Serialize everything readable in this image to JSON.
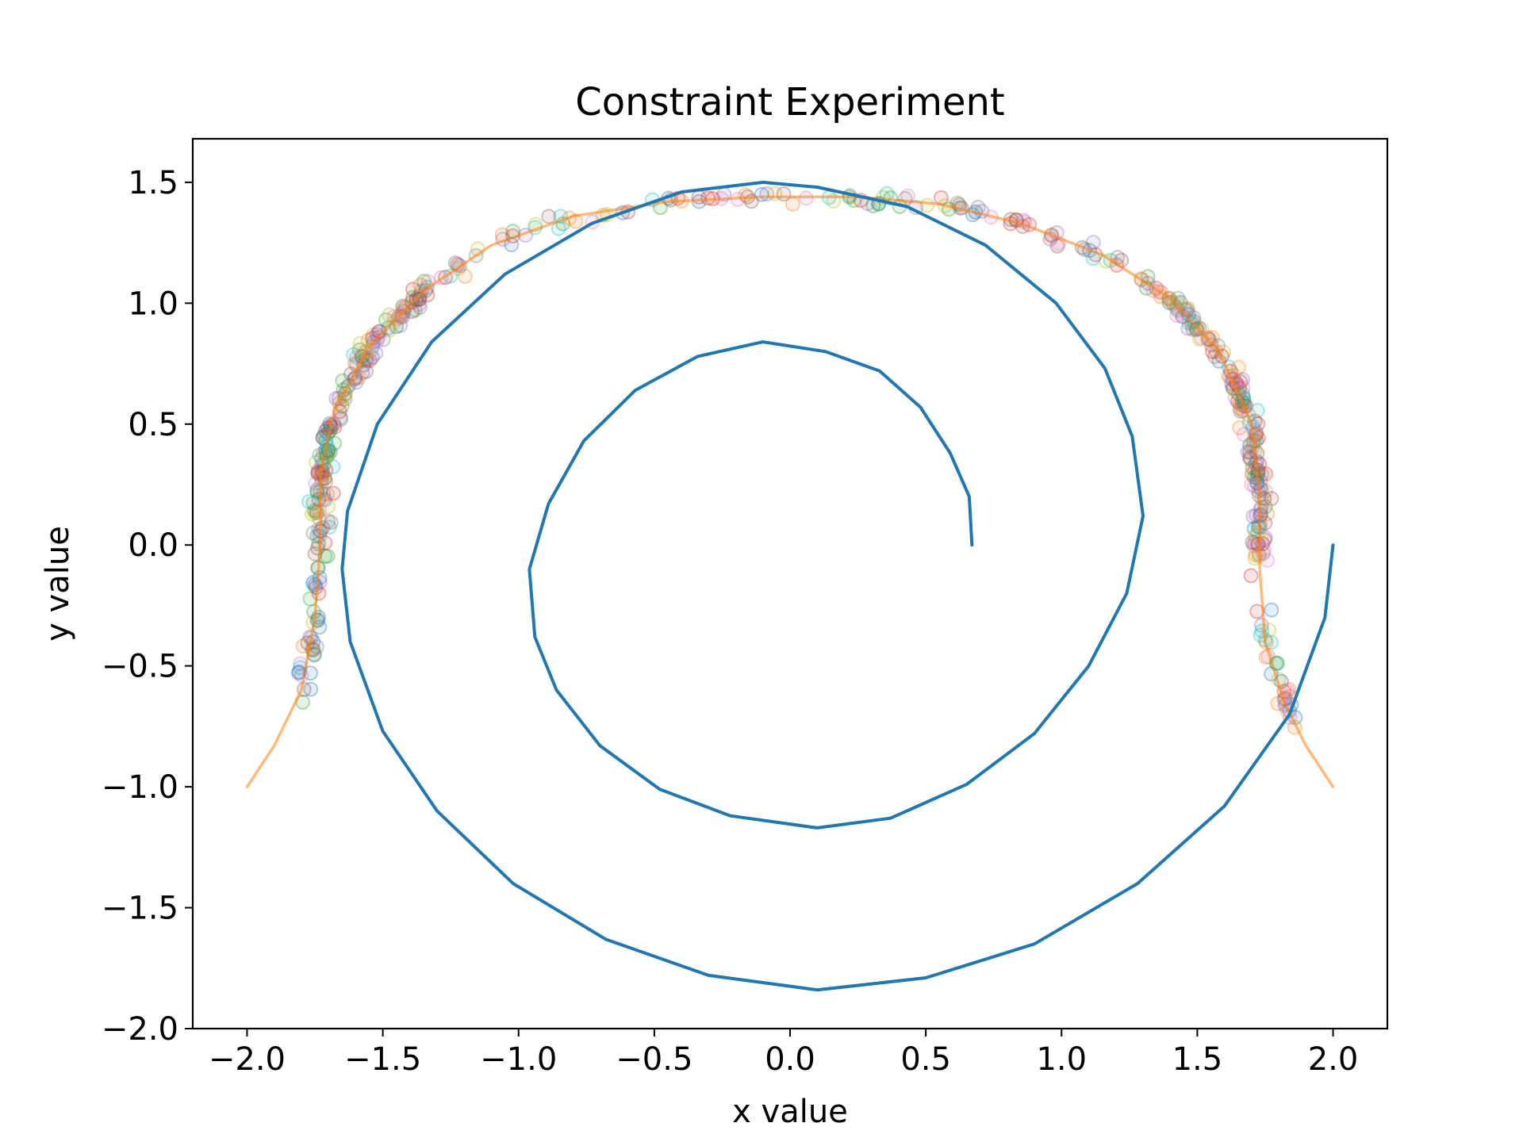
{
  "chart_data": {
    "type": "scatter",
    "title": "Constraint Experiment",
    "xlabel": "x value",
    "ylabel": "y value",
    "xlim": [
      -2.2,
      2.2
    ],
    "ylim": [
      -2.0,
      1.68
    ],
    "xticks": [
      -2.0,
      -1.5,
      -1.0,
      -0.5,
      0.0,
      0.5,
      1.0,
      1.5,
      2.0
    ],
    "xtick_labels": [
      "−2.0",
      "−1.5",
      "−1.0",
      "−0.5",
      "0.0",
      "0.5",
      "1.0",
      "1.5",
      "2.0"
    ],
    "yticks": [
      -2.0,
      -1.5,
      -1.0,
      -0.5,
      0.0,
      0.5,
      1.0,
      1.5
    ],
    "ytick_labels": [
      "−2.0",
      "−1.5",
      "−1.0",
      "−0.5",
      "0.0",
      "0.5",
      "1.0",
      "1.5"
    ],
    "grid": false,
    "legend": "none",
    "colors": {
      "spiral": "#1f77b4",
      "constraint": "#ff7f0e",
      "scatter_palette": [
        "#1f77b4",
        "#ff7f0e",
        "#2ca02c",
        "#d62728",
        "#9467bd",
        "#8c564b",
        "#e377c2",
        "#7f7f7f",
        "#bcbd22",
        "#17becf"
      ]
    },
    "series": [
      {
        "type": "line",
        "color": "#1f77b4",
        "points": [
          [
            0.67,
            0.0
          ],
          [
            0.66,
            0.2
          ],
          [
            0.59,
            0.38
          ],
          [
            0.48,
            0.57
          ],
          [
            0.33,
            0.72
          ],
          [
            0.13,
            0.8
          ],
          [
            -0.1,
            0.84
          ],
          [
            -0.34,
            0.78
          ],
          [
            -0.57,
            0.64
          ],
          [
            -0.76,
            0.43
          ],
          [
            -0.89,
            0.17
          ],
          [
            -0.96,
            -0.1
          ],
          [
            -0.94,
            -0.38
          ],
          [
            -0.86,
            -0.6
          ],
          [
            -0.7,
            -0.83
          ],
          [
            -0.48,
            -1.01
          ],
          [
            -0.22,
            -1.12
          ],
          [
            0.1,
            -1.17
          ],
          [
            0.37,
            -1.13
          ],
          [
            0.65,
            -0.99
          ],
          [
            0.9,
            -0.78
          ],
          [
            1.1,
            -0.5
          ],
          [
            1.24,
            -0.2
          ],
          [
            1.3,
            0.12
          ],
          [
            1.26,
            0.45
          ],
          [
            1.16,
            0.73
          ],
          [
            0.98,
            1.0
          ],
          [
            0.72,
            1.24
          ],
          [
            0.43,
            1.4
          ],
          [
            0.1,
            1.48
          ],
          [
            -0.1,
            1.5
          ],
          [
            -0.4,
            1.46
          ],
          [
            -0.73,
            1.33
          ],
          [
            -1.05,
            1.12
          ],
          [
            -1.32,
            0.84
          ],
          [
            -1.52,
            0.5
          ],
          [
            -1.63,
            0.14
          ],
          [
            -1.65,
            -0.1
          ],
          [
            -1.62,
            -0.4
          ],
          [
            -1.5,
            -0.77
          ],
          [
            -1.3,
            -1.1
          ],
          [
            -1.02,
            -1.4
          ],
          [
            -0.68,
            -1.63
          ],
          [
            -0.3,
            -1.78
          ],
          [
            0.1,
            -1.84
          ],
          [
            0.5,
            -1.79
          ],
          [
            0.9,
            -1.65
          ],
          [
            1.28,
            -1.4
          ],
          [
            1.6,
            -1.08
          ],
          [
            1.84,
            -0.7
          ],
          [
            1.97,
            -0.3
          ],
          [
            2.0,
            0.0
          ]
        ]
      },
      {
        "type": "line",
        "color": "#ff7f0e",
        "points": [
          [
            -2.0,
            -1.0
          ],
          [
            -1.9,
            -0.83
          ],
          [
            -1.8,
            -0.6
          ],
          [
            -1.75,
            -0.3
          ],
          [
            -1.73,
            0.0
          ],
          [
            -1.73,
            0.3
          ],
          [
            -1.68,
            0.55
          ],
          [
            -1.55,
            0.82
          ],
          [
            -1.35,
            1.05
          ],
          [
            -1.1,
            1.24
          ],
          [
            -0.8,
            1.36
          ],
          [
            -0.45,
            1.42
          ],
          [
            -0.1,
            1.44
          ],
          [
            0.25,
            1.44
          ],
          [
            0.55,
            1.41
          ],
          [
            0.85,
            1.33
          ],
          [
            1.15,
            1.2
          ],
          [
            1.4,
            1.02
          ],
          [
            1.58,
            0.8
          ],
          [
            1.7,
            0.5
          ],
          [
            1.73,
            0.2
          ],
          [
            1.73,
            -0.1
          ],
          [
            1.75,
            -0.4
          ],
          [
            1.82,
            -0.65
          ],
          [
            1.9,
            -0.83
          ],
          [
            2.0,
            -1.0
          ]
        ]
      }
    ],
    "scatter_note": "Several hundred noisy samples (alpha ~0.25, marker outlines in the matplotlib default color cycle) scattered tightly around the orange constraint curve for x in approx [-1.85, 1.85]."
  }
}
